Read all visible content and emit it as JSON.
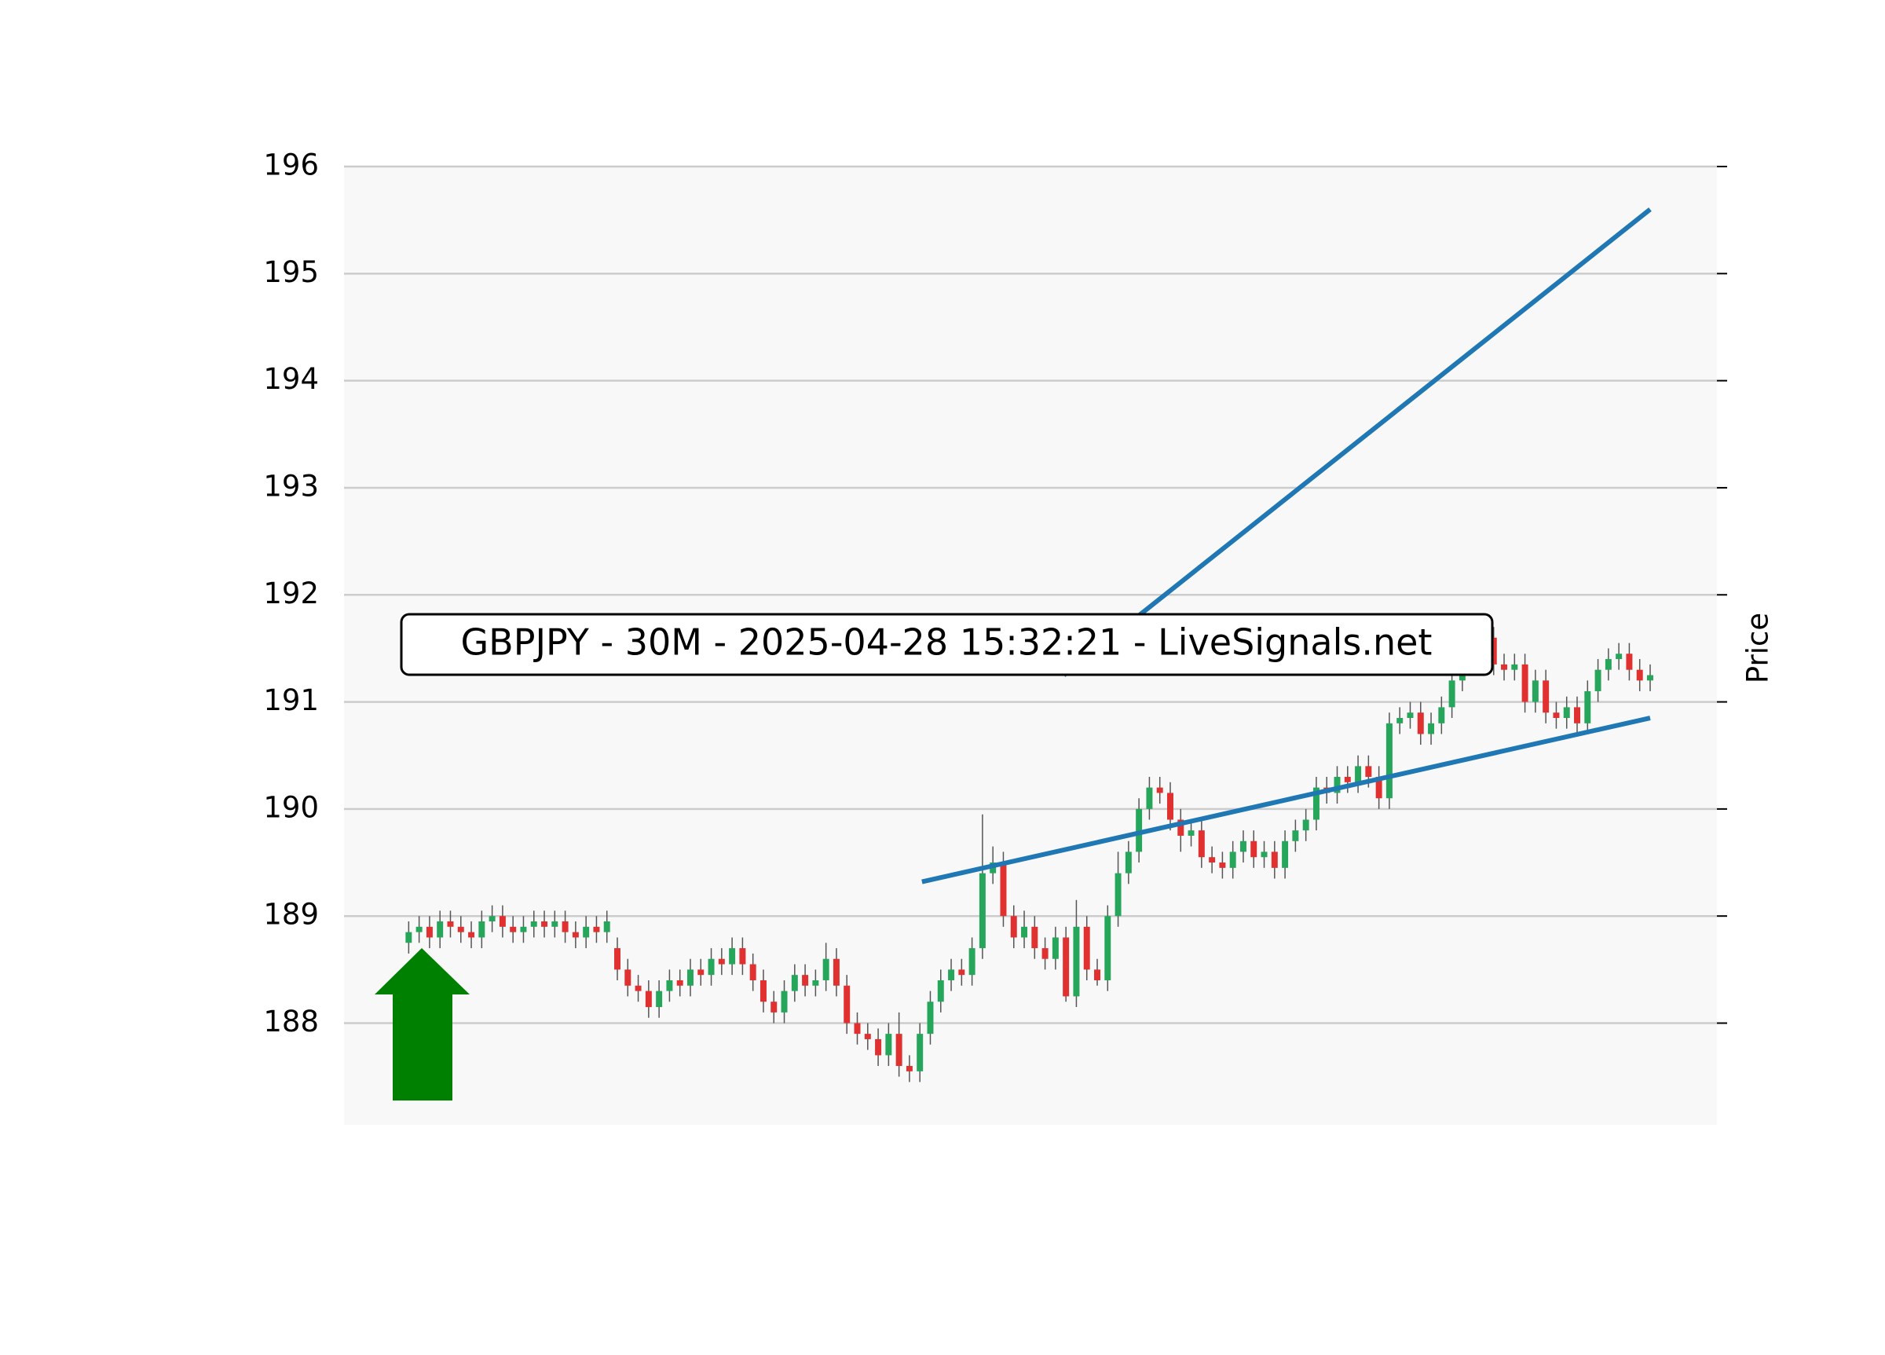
{
  "chart_data": {
    "type": "candlestick",
    "annotation": "GBPJPY - 30M - 2025-04-28 15:32:21 - LiveSignals.net",
    "ylabel": "Price",
    "ylim": [
      187.05,
      196
    ],
    "yticks": [
      188,
      189,
      190,
      191,
      192,
      193,
      194,
      195,
      196
    ],
    "grid": true,
    "xlim": [
      -6.2,
      125.4
    ],
    "up_color": "#26a65b",
    "down_color": "#e03030",
    "wick_color": "#555555",
    "open": [
      188.75,
      188.85,
      188.9,
      188.8,
      188.95,
      188.9,
      188.85,
      188.8,
      188.95,
      189.0,
      188.9,
      188.85,
      188.9,
      188.95,
      188.9,
      188.95,
      188.85,
      188.8,
      188.9,
      188.85,
      188.7,
      188.5,
      188.35,
      188.3,
      188.15,
      188.3,
      188.4,
      188.35,
      188.5,
      188.45,
      188.6,
      188.55,
      188.7,
      188.55,
      188.4,
      188.2,
      188.1,
      188.3,
      188.45,
      188.35,
      188.4,
      188.6,
      188.35,
      188.0,
      187.9,
      187.85,
      187.7,
      187.9,
      187.6,
      187.55,
      187.9,
      188.2,
      188.4,
      188.5,
      188.45,
      188.7,
      189.4,
      189.5,
      189.0,
      188.8,
      188.9,
      188.7,
      188.6,
      188.8,
      188.25,
      188.9,
      188.5,
      188.4,
      189.0,
      189.4,
      189.6,
      190.0,
      190.2,
      190.15,
      189.9,
      189.75,
      189.8,
      189.55,
      189.5,
      189.45,
      189.6,
      189.7,
      189.55,
      189.6,
      189.45,
      189.7,
      189.8,
      189.9,
      190.2,
      190.15,
      190.3,
      190.25,
      190.4,
      190.3,
      190.1,
      190.8,
      190.85,
      190.9,
      190.7,
      190.8,
      190.95,
      191.2,
      191.45,
      191.5,
      191.6,
      191.35,
      191.3,
      191.35,
      191.0,
      191.2,
      190.9,
      190.85,
      190.95,
      190.8,
      191.1,
      191.3,
      191.4,
      191.45,
      191.3,
      191.2
    ],
    "high": [
      188.95,
      189.0,
      189.0,
      189.05,
      189.05,
      189.0,
      188.95,
      189.05,
      189.1,
      189.1,
      189.0,
      189.0,
      189.05,
      189.05,
      189.05,
      189.05,
      188.95,
      189.0,
      189.0,
      189.05,
      188.8,
      188.6,
      188.45,
      188.4,
      188.4,
      188.5,
      188.5,
      188.6,
      188.6,
      188.7,
      188.7,
      188.8,
      188.8,
      188.65,
      188.5,
      188.3,
      188.4,
      188.55,
      188.55,
      188.5,
      188.75,
      188.7,
      188.45,
      188.1,
      188.0,
      187.95,
      188.0,
      188.1,
      187.7,
      188.0,
      188.3,
      188.5,
      188.6,
      188.6,
      188.8,
      189.95,
      189.65,
      189.6,
      189.1,
      189.05,
      189.0,
      188.8,
      188.9,
      188.9,
      189.15,
      189.0,
      188.6,
      189.1,
      189.6,
      189.7,
      190.1,
      190.3,
      190.3,
      190.25,
      190.0,
      189.9,
      189.9,
      189.65,
      189.6,
      189.7,
      189.8,
      189.8,
      189.7,
      189.7,
      189.8,
      189.9,
      190.0,
      190.3,
      190.3,
      190.4,
      190.4,
      190.5,
      190.5,
      190.4,
      190.9,
      190.95,
      191.0,
      191.0,
      190.9,
      191.05,
      191.3,
      191.55,
      191.6,
      191.7,
      191.7,
      191.45,
      191.45,
      191.45,
      191.3,
      191.3,
      191.0,
      191.05,
      191.05,
      191.2,
      191.4,
      191.5,
      191.55,
      191.55,
      191.4,
      191.35
    ],
    "low": [
      188.65,
      188.75,
      188.7,
      188.7,
      188.8,
      188.75,
      188.7,
      188.7,
      188.85,
      188.8,
      188.75,
      188.75,
      188.8,
      188.8,
      188.8,
      188.75,
      188.7,
      188.7,
      188.75,
      188.75,
      188.4,
      188.25,
      188.2,
      188.05,
      188.05,
      188.2,
      188.25,
      188.25,
      188.35,
      188.35,
      188.45,
      188.45,
      188.45,
      188.3,
      188.1,
      188.0,
      188.0,
      188.2,
      188.25,
      188.25,
      188.3,
      188.25,
      187.9,
      187.8,
      187.75,
      187.6,
      187.6,
      187.5,
      187.45,
      187.45,
      187.8,
      188.1,
      188.3,
      188.35,
      188.35,
      188.6,
      189.3,
      188.9,
      188.7,
      188.7,
      188.6,
      188.5,
      188.5,
      188.2,
      188.15,
      188.4,
      188.35,
      188.3,
      188.9,
      189.3,
      189.5,
      189.9,
      190.05,
      189.8,
      189.6,
      189.65,
      189.45,
      189.4,
      189.35,
      189.35,
      189.5,
      189.45,
      189.45,
      189.35,
      189.35,
      189.6,
      189.7,
      189.8,
      190.05,
      190.05,
      190.15,
      190.15,
      190.2,
      190.0,
      190.0,
      190.7,
      190.75,
      190.6,
      190.6,
      190.7,
      190.85,
      191.1,
      191.35,
      191.4,
      191.25,
      191.2,
      191.2,
      190.9,
      190.9,
      190.8,
      190.75,
      190.75,
      190.7,
      190.7,
      191.0,
      191.2,
      191.3,
      191.2,
      191.1,
      191.1
    ],
    "close": [
      188.85,
      188.9,
      188.8,
      188.95,
      188.9,
      188.85,
      188.8,
      188.95,
      189.0,
      188.9,
      188.85,
      188.9,
      188.95,
      188.9,
      188.95,
      188.85,
      188.8,
      188.9,
      188.85,
      188.95,
      188.5,
      188.35,
      188.3,
      188.15,
      188.3,
      188.4,
      188.35,
      188.5,
      188.45,
      188.6,
      188.55,
      188.7,
      188.55,
      188.4,
      188.2,
      188.1,
      188.3,
      188.45,
      188.35,
      188.4,
      188.6,
      188.35,
      188.0,
      187.9,
      187.85,
      187.7,
      187.9,
      187.6,
      187.55,
      187.9,
      188.2,
      188.4,
      188.5,
      188.45,
      188.7,
      189.4,
      189.5,
      189.0,
      188.8,
      188.9,
      188.7,
      188.6,
      188.8,
      188.25,
      188.9,
      188.5,
      188.4,
      189.0,
      189.4,
      189.6,
      190.0,
      190.2,
      190.15,
      189.9,
      189.75,
      189.8,
      189.55,
      189.5,
      189.45,
      189.6,
      189.7,
      189.55,
      189.6,
      189.45,
      189.7,
      189.8,
      189.9,
      190.2,
      190.15,
      190.3,
      190.25,
      190.4,
      190.3,
      190.1,
      190.8,
      190.85,
      190.9,
      190.7,
      190.8,
      190.95,
      191.2,
      191.45,
      191.5,
      191.6,
      191.35,
      191.3,
      191.35,
      191.0,
      191.2,
      190.9,
      190.85,
      190.95,
      190.8,
      191.1,
      191.3,
      191.4,
      191.45,
      191.3,
      191.2,
      191.25
    ],
    "trendlines": [
      {
        "color": "#1f77b4",
        "x": [
          49.2,
          119
        ],
        "y": [
          189.32,
          190.85
        ]
      },
      {
        "color": "#1f77b4",
        "x": [
          62.8,
          119
        ],
        "y": [
          191.25,
          195.6
        ]
      }
    ]
  }
}
